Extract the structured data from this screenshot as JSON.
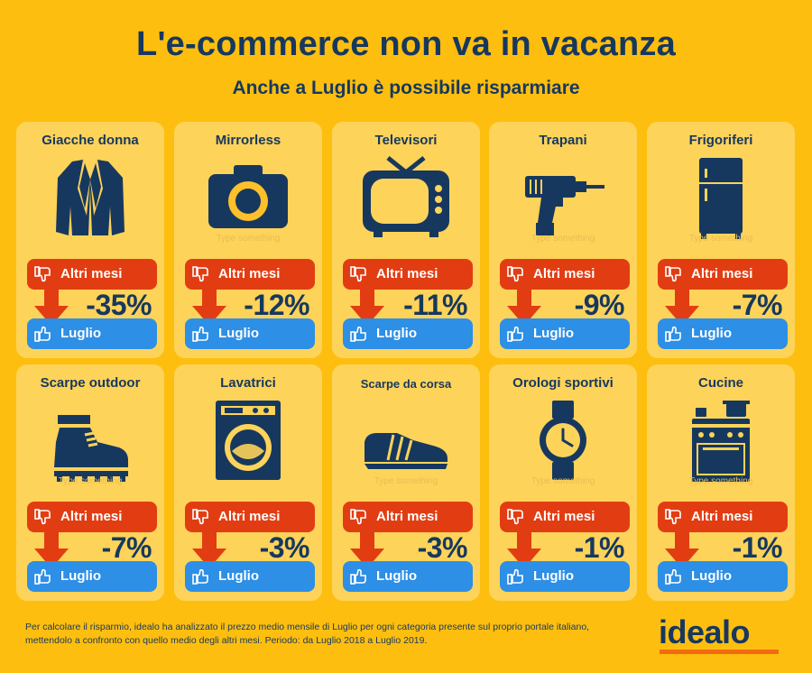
{
  "header": {
    "title": "L'e-commerce non va in vacanza",
    "subtitle": "Anche a Luglio è possibile risparmiare"
  },
  "labels": {
    "other_months": "Altri mesi",
    "july": "Luglio",
    "placeholder": "Type something"
  },
  "cards": [
    {
      "name": "Giacche donna",
      "icon": "jacket-icon",
      "change": "-35%"
    },
    {
      "name": "Mirrorless",
      "icon": "camera-icon",
      "change": "-12%"
    },
    {
      "name": "Televisori",
      "icon": "tv-icon",
      "change": "-11%"
    },
    {
      "name": "Trapani",
      "icon": "drill-icon",
      "change": "-9%"
    },
    {
      "name": "Frigoriferi",
      "icon": "fridge-icon",
      "change": "-7%"
    },
    {
      "name": "Scarpe outdoor",
      "icon": "boot-icon",
      "change": "-7%"
    },
    {
      "name": "Lavatrici",
      "icon": "washing-machine-icon",
      "change": "-3%"
    },
    {
      "name": "Scarpe da corsa",
      "icon": "sneaker-icon",
      "change": "-3%"
    },
    {
      "name": "Orologi sportivi",
      "icon": "watch-icon",
      "change": "-1%"
    },
    {
      "name": "Cucine",
      "icon": "stove-icon",
      "change": "-1%"
    }
  ],
  "footer": {
    "note": "Per calcolare il risparmio, idealo ha analizzato il prezzo medio mensile di Luglio per ogni categoria presente sul proprio portale italiano, mettendolo a confronto con quello medio degli altri mesi. Periodo: da Luglio 2018 a Luglio 2019.",
    "logo": "idealo"
  },
  "colors": {
    "background": "#fdbe0f",
    "card": "#fdd35a",
    "navy": "#17385e",
    "red": "#e23d12",
    "blue": "#2d8fe6",
    "logo_accent": "#f36a13"
  }
}
